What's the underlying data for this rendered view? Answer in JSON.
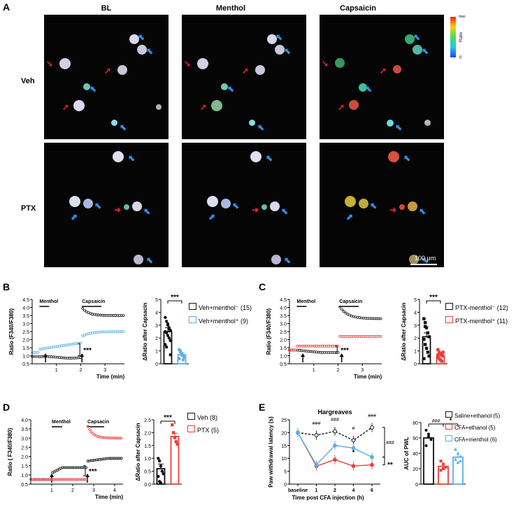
{
  "panels": {
    "A": "A",
    "B": "B",
    "C": "C",
    "D": "D",
    "E": "E"
  },
  "panelA": {
    "columns": [
      "BL",
      "Menthol",
      "Capsaicin"
    ],
    "rows": [
      "Veh",
      "PTX"
    ],
    "colorbar": {
      "max": "max",
      "label": "Ratio",
      "min": "0"
    },
    "scalebar": "100 μm"
  },
  "panelB": {
    "trace": {
      "ylabel": "Ratio (F340/F380)",
      "xlabel": "Time (min)",
      "menthol": "Menthol",
      "capsaicin": "Capsaicin",
      "sig": "***",
      "yticks": [
        "0.5",
        "1.0",
        "1.5",
        "2.0",
        "2.5",
        "3.0",
        "3.5",
        "4.0",
        "4.5"
      ],
      "xticks": [
        "1",
        "2",
        "3"
      ]
    },
    "bar": {
      "ylabel": "ΔRatio after Capsacin",
      "sig": "***",
      "yticks": [
        "0",
        "1",
        "2",
        "3",
        "4",
        "5"
      ]
    },
    "legend": [
      "Veh+menthol⁻ (15)",
      "Veh+menthol⁺ (9)"
    ]
  },
  "panelC": {
    "trace": {
      "ylabel": "Ratio (F340/F380)",
      "xlabel": "Time (min)",
      "menthol": "Menthol",
      "capsaicin": "Capsaicin",
      "sig": "***",
      "yticks": [
        "0.5",
        "1.0",
        "1.5",
        "2.0",
        "2.5",
        "3.0",
        "3.5",
        "4.0",
        "4.5"
      ],
      "xticks": [
        "1",
        "2",
        "3"
      ]
    },
    "bar": {
      "ylabel": "ΔRatio after Capsacin",
      "sig": "***",
      "yticks": [
        "0",
        "1",
        "2",
        "3",
        "4",
        "5"
      ]
    },
    "legend": [
      "PTX-menthol⁻ (12)",
      "PTX-menthol⁺ (11)"
    ]
  },
  "panelD": {
    "trace": {
      "ylabel": "Ratio ( F340/F380)",
      "xlabel": "Time (min)",
      "menthol": "Menthol",
      "capsaicin": "Capsacin",
      "sig": "***",
      "yticks": [
        "0.5",
        "1.0",
        "1.5",
        "2.0",
        "2.5",
        "3.0",
        "3.5",
        "4.0"
      ],
      "xticks": [
        "1",
        "2",
        "3",
        "4"
      ]
    },
    "bar": {
      "ylabel": "ΔRatio after Capsacin",
      "sig": "***",
      "yticks": [
        "0.0",
        "0.5",
        "1.0",
        "1.5",
        "2.0",
        "2.5"
      ]
    },
    "legend": [
      "Veh (8)",
      "PTX (5)"
    ]
  },
  "panelE": {
    "line": {
      "title": "Hargreaves",
      "ylabel": "Paw withdrawal latency (s)",
      "xlabel": "Time post CFA injection (h)",
      "xticks": [
        "baseline",
        "1",
        "2",
        "4",
        "6"
      ],
      "yticks": [
        "0",
        "5",
        "10",
        "15",
        "20",
        "25"
      ],
      "hash": [
        "###",
        "###",
        "#",
        "###"
      ],
      "sig_right": [
        "###",
        "**"
      ],
      "star4": "*"
    },
    "bar": {
      "ylabel": "AUC of PWL",
      "yticks": [
        "0",
        "20",
        "40",
        "60",
        "80"
      ],
      "sig": [
        "###",
        "*"
      ]
    },
    "legend": [
      "Saline+ethanol (5)",
      "CFA+ethanol (5)",
      "CFA+menthol (6)"
    ]
  },
  "colors": {
    "black": "#111111",
    "blue": "#5aaee8",
    "red": "#e8403a"
  },
  "chart_data": [
    {
      "type": "bar",
      "panel": "B",
      "categories": [
        "Veh+menthol⁻",
        "Veh+menthol⁺"
      ],
      "values": [
        2.5,
        0.7
      ],
      "ylim": [
        0,
        5
      ],
      "ylabel": "ΔRatio after Capsacin"
    },
    {
      "type": "bar",
      "panel": "C",
      "categories": [
        "PTX-menthol⁻",
        "PTX-menthol⁺"
      ],
      "values": [
        2.1,
        0.6
      ],
      "ylim": [
        0,
        5
      ],
      "ylabel": "ΔRatio after Capsacin"
    },
    {
      "type": "bar",
      "panel": "D",
      "categories": [
        "Veh",
        "PTX"
      ],
      "values": [
        0.6,
        1.85
      ],
      "ylim": [
        0,
        2.5
      ],
      "ylabel": "ΔRatio after Capsacin"
    },
    {
      "type": "line",
      "panel": "E",
      "x": [
        "baseline",
        "1",
        "2",
        "4",
        "6"
      ],
      "ylim": [
        0,
        25
      ],
      "series": [
        {
          "name": "Saline+ethanol (5)",
          "values": [
            20,
            19,
            20.5,
            17,
            22
          ]
        },
        {
          "name": "CFA+ethanol (5)",
          "values": [
            20,
            7,
            9.5,
            7,
            7.5
          ]
        },
        {
          "name": "CFA+menthol (6)",
          "values": [
            20,
            7.5,
            15,
            14,
            10.5
          ]
        }
      ]
    },
    {
      "type": "bar",
      "panel": "E",
      "categories": [
        "Saline+ethanol",
        "CFA+ethanol",
        "CFA+menthol"
      ],
      "values": [
        60,
        23,
        35
      ],
      "ylim": [
        0,
        80
      ],
      "ylabel": "AUC of PWL"
    }
  ]
}
